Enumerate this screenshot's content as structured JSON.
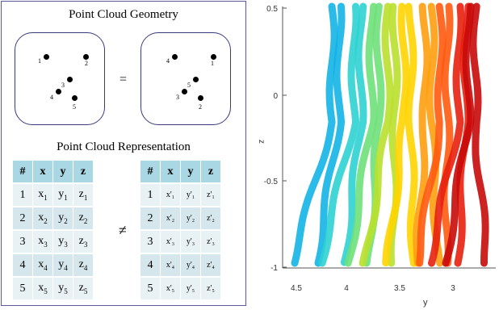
{
  "geometry": {
    "title": "Point Cloud Geometry",
    "operator": "=",
    "left_labels": [
      "1",
      "2",
      "3",
      "4",
      "5"
    ],
    "right_labels": [
      "4",
      "1",
      "5",
      "3",
      "2"
    ]
  },
  "representation": {
    "title": "Point Cloud Representation",
    "operator": "≠",
    "headers": [
      "#",
      "x",
      "y",
      "z"
    ],
    "left_rows": [
      {
        "n": "1",
        "x": "x",
        "xs": "1",
        "y": "y",
        "ys": "1",
        "z": "z",
        "zs": "1"
      },
      {
        "n": "2",
        "x": "x",
        "xs": "2",
        "y": "y",
        "ys": "2",
        "z": "z",
        "zs": "2"
      },
      {
        "n": "3",
        "x": "x",
        "xs": "3",
        "y": "y",
        "ys": "3",
        "z": "z",
        "zs": "3"
      },
      {
        "n": "4",
        "x": "x",
        "xs": "4",
        "y": "y",
        "ys": "4",
        "z": "z",
        "zs": "4"
      },
      {
        "n": "5",
        "x": "x",
        "xs": "5",
        "y": "y",
        "ys": "5",
        "z": "z",
        "zs": "5"
      }
    ],
    "right_rows": [
      {
        "n": "1",
        "x": "x'₁",
        "y": "y'₁",
        "z": "z'₁"
      },
      {
        "n": "2",
        "x": "x'₂",
        "y": "y'₂",
        "z": "z'₂"
      },
      {
        "n": "3",
        "x": "x'₃",
        "y": "y'₃",
        "z": "z'₃"
      },
      {
        "n": "4",
        "x": "x'₄",
        "y": "y'₄",
        "z": "z'₄"
      },
      {
        "n": "5",
        "x": "x'₅",
        "y": "y'₅",
        "z": "z'₅"
      }
    ]
  },
  "plot": {
    "xlabel": "y",
    "ylabel": "z",
    "xticks": [
      "4.5",
      "4",
      "3.5",
      "3"
    ],
    "yticks": [
      "0.5",
      "0",
      "-0.5",
      "-1"
    ],
    "strand_colors": [
      "#14b4e6",
      "#2fd2d2",
      "#6fe07a",
      "#b9e02c",
      "#ffd400",
      "#ff9f10",
      "#ff5a10",
      "#e8200e",
      "#c80a0a"
    ]
  }
}
